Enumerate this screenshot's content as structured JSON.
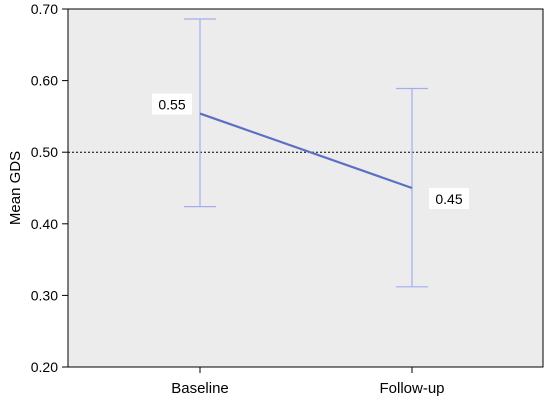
{
  "chart_data": {
    "type": "line",
    "categories": [
      "Baseline",
      "Follow-up"
    ],
    "series": [
      {
        "values": [
          0.554,
          0.45
        ],
        "error_low": [
          0.424,
          0.312
        ],
        "error_high": [
          0.686,
          0.589
        ],
        "labels": [
          "0.55",
          "0.45"
        ],
        "color": "#5b6fc4"
      }
    ],
    "ylabel": "Mean GDS",
    "xlabel": "",
    "ylim": [
      0.2,
      0.7
    ],
    "y_ticks": [
      "0.70",
      "0.60",
      "0.50",
      "0.40",
      "0.30",
      "0.20"
    ],
    "reference_line": 0.5,
    "grid": false,
    "plot_background": "#ececec",
    "errorbar_color": "#a4aeef"
  }
}
